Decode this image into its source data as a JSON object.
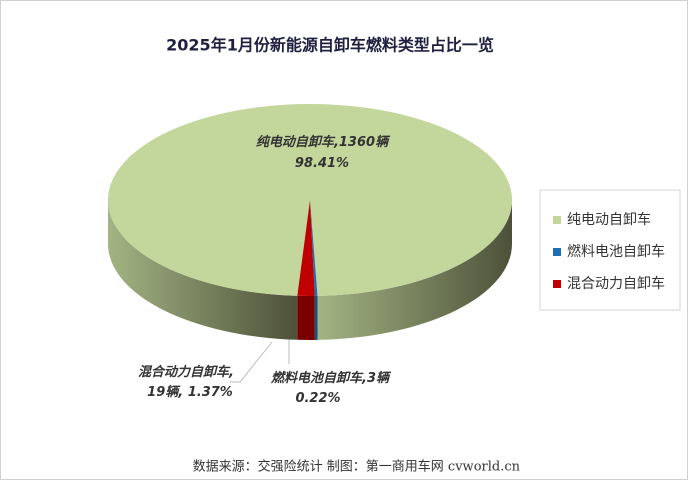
{
  "chart_data": {
    "type": "pie3d",
    "title": "2025年1月份新能源自卸车燃料类型占比一览",
    "categories": [
      "纯电动自卸车",
      "燃料电池自卸车",
      "混合动力自卸车"
    ],
    "values": [
      1360,
      3,
      19
    ],
    "value_labels": [
      "1360辆",
      "3辆",
      "19辆"
    ],
    "percentages": [
      98.41,
      0.22,
      1.37
    ],
    "percentage_labels": [
      "98.41%",
      "0.22%",
      "1.37%"
    ],
    "label_separator": ",",
    "colors": [
      "#c3d69b",
      "#1f6fb5",
      "#c00000"
    ],
    "legend": "right",
    "source": "数据来源：交强险统计  制图：第一商用车网 cvworld.cn"
  }
}
